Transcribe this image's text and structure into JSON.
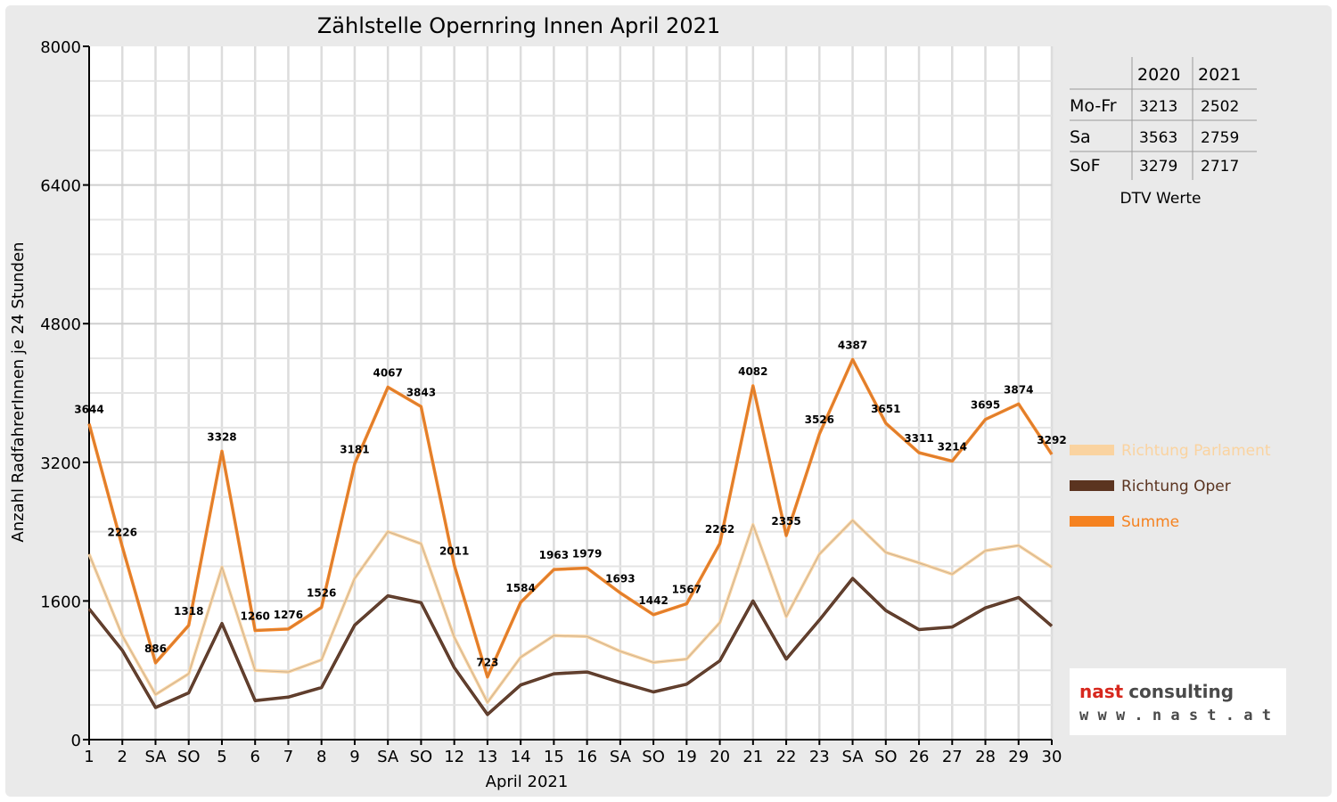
{
  "chart_data": {
    "type": "line",
    "title": "Zählstelle Opernring Innen April 2021",
    "xlabel": "April 2021",
    "ylabel": "Anzahl RadfahrerInnen je 24 Stunden",
    "ylim": [
      0,
      8000
    ],
    "yticks": [
      "0",
      "1600",
      "3200",
      "4800",
      "6400",
      "8000"
    ],
    "grid": true,
    "legend_position": "right",
    "categories": [
      "1",
      "2",
      "SA",
      "SO",
      "5",
      "6",
      "7",
      "8",
      "9",
      "SA",
      "SO",
      "12",
      "13",
      "14",
      "15",
      "16",
      "SA",
      "SO",
      "19",
      "20",
      "21",
      "22",
      "23",
      "SA",
      "SO",
      "26",
      "27",
      "28",
      "29",
      "30"
    ],
    "red_categories": [
      3,
      4,
      10,
      17,
      24
    ],
    "series": [
      {
        "name": "Richtung Parlament",
        "color": "#fad3a0",
        "values": [
          2140,
          1200,
          520,
          760,
          1990,
          800,
          780,
          920,
          1860,
          2400,
          2260,
          1180,
          430,
          950,
          1200,
          1190,
          1020,
          890,
          930,
          1350,
          2480,
          1420,
          2140,
          2530,
          2160,
          2040,
          1910,
          2180,
          2240,
          1990
        ]
      },
      {
        "name": "Richtung Oper",
        "color": "#5b3420",
        "values": [
          1510,
          1030,
          370,
          540,
          1340,
          450,
          490,
          600,
          1320,
          1660,
          1580,
          830,
          290,
          630,
          760,
          780,
          660,
          550,
          640,
          910,
          1600,
          930,
          1380,
          1860,
          1490,
          1270,
          1300,
          1520,
          1640,
          1310
        ]
      },
      {
        "name": "Summe",
        "color": "#f58220",
        "values": [
          3644,
          2226,
          886,
          1318,
          3328,
          1260,
          1276,
          1526,
          3181,
          4067,
          3843,
          2011,
          723,
          1584,
          1963,
          1979,
          1693,
          1442,
          1567,
          2262,
          4082,
          2355,
          3526,
          4387,
          3651,
          3311,
          3214,
          3695,
          3874,
          3292
        ]
      }
    ],
    "data_labels": [
      "3644",
      "2226",
      "886",
      "1318",
      "3328",
      "1260",
      "1276",
      "1526",
      "3181",
      "4067",
      "3843",
      "2011",
      "723",
      "1584",
      "1963",
      "1979",
      "1693",
      "1442",
      "1567",
      "2262",
      "4082",
      "2355",
      "3526",
      "4387",
      "3651",
      "3311",
      "3214",
      "3695",
      "3874",
      "3292"
    ]
  },
  "dtv_table": {
    "caption": "DTV Werte",
    "headers": [
      "2020",
      "2021"
    ],
    "rows": [
      {
        "label": "Mo-Fr",
        "v2020": "3213",
        "v2021": "2502"
      },
      {
        "label": "Sa",
        "v2020": "3563",
        "v2021": "2759"
      },
      {
        "label": "SoF",
        "v2020": "3279",
        "v2021": "2717"
      }
    ]
  },
  "logo": {
    "line1_a": "nast",
    "line1_b": "consulting",
    "line2": "w w w . n a s t . a t"
  },
  "colors": {
    "weekday": "#000000",
    "holiday": "#ff0000",
    "summe": "#f58220",
    "oper": "#5b3420",
    "parlament": "#fad3a0"
  }
}
